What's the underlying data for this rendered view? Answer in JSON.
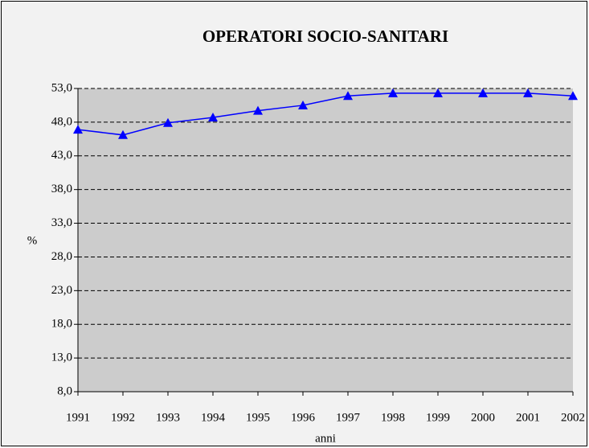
{
  "chart_data": {
    "type": "line",
    "title": "OPERATORI SOCIO-SANITARI",
    "x_label": "anni",
    "y_label": "%",
    "categories": [
      "1991",
      "1992",
      "1993",
      "1994",
      "1995",
      "1996",
      "1997",
      "1998",
      "1999",
      "2000",
      "2001",
      "2002"
    ],
    "series": [
      {
        "name": "%",
        "color": "#0000ff",
        "values": [
          46.9,
          46.1,
          47.9,
          48.7,
          49.7,
          50.5,
          51.9,
          52.3,
          52.3,
          52.3,
          52.3,
          51.9
        ]
      }
    ],
    "ylim": [
      8,
      53
    ],
    "yticks": [
      {
        "value": 8,
        "label": "8,0"
      },
      {
        "value": 13,
        "label": "13,0"
      },
      {
        "value": 18,
        "label": "18,0"
      },
      {
        "value": 23,
        "label": "23,0"
      },
      {
        "value": 28,
        "label": "28,0"
      },
      {
        "value": 33,
        "label": "33,0"
      },
      {
        "value": 38,
        "label": "38,0"
      },
      {
        "value": 43,
        "label": "43,0"
      },
      {
        "value": 48,
        "label": "48,0"
      },
      {
        "value": 53,
        "label": "53,0"
      }
    ],
    "grid": true,
    "marker": "triangle"
  }
}
